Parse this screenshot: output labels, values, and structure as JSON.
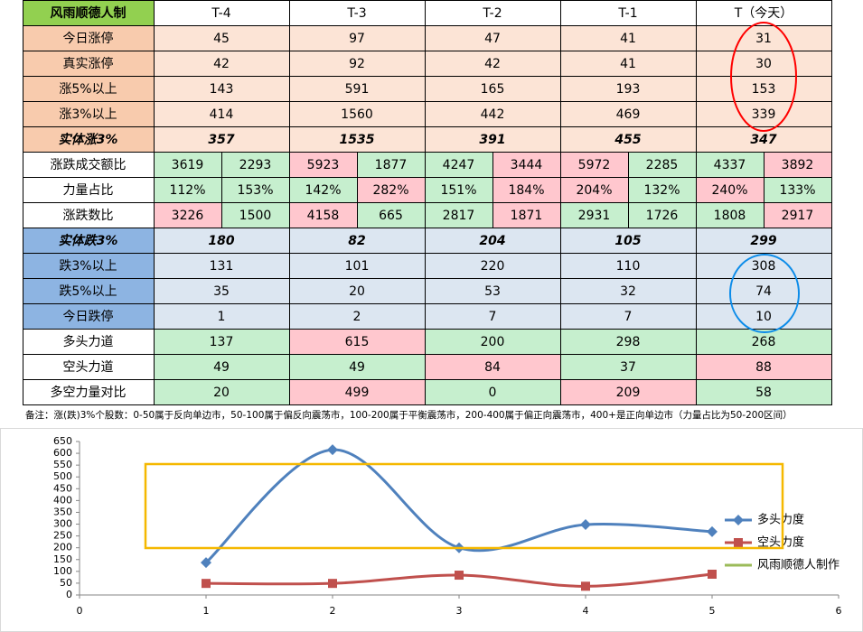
{
  "table": {
    "header": [
      "风雨顺德人制",
      "T-4",
      "T-3",
      "T-2",
      "T-1",
      "T（今天）"
    ],
    "rows": [
      {
        "label": "今日涨停",
        "cells": [
          45,
          97,
          47,
          41,
          31
        ]
      },
      {
        "label": "真实涨停",
        "cells": [
          42,
          92,
          42,
          41,
          30
        ]
      },
      {
        "label": "涨5%以上",
        "cells": [
          143,
          591,
          165,
          193,
          153
        ]
      },
      {
        "label": "涨3%以上",
        "cells": [
          414,
          1560,
          442,
          469,
          339
        ]
      },
      {
        "label": "实体涨3%",
        "cells": [
          357,
          1535,
          391,
          455,
          347
        ]
      },
      {
        "label": "涨跌成交额比",
        "cells": [
          [
            3619,
            2293
          ],
          [
            5923,
            1877
          ],
          [
            4247,
            3444
          ],
          [
            5972,
            2285
          ],
          [
            4337,
            3892
          ]
        ]
      },
      {
        "label": "力量占比",
        "cells": [
          [
            "112%",
            "153%"
          ],
          [
            "142%",
            "282%"
          ],
          [
            "151%",
            "184%"
          ],
          [
            "204%",
            "132%"
          ],
          [
            "240%",
            "133%"
          ]
        ]
      },
      {
        "label": "涨跌数比",
        "cells": [
          [
            3226,
            1500
          ],
          [
            4158,
            665
          ],
          [
            2817,
            1871
          ],
          [
            2931,
            1726
          ],
          [
            1808,
            2917
          ]
        ]
      },
      {
        "label": "实体跌3%",
        "cells": [
          180,
          82,
          204,
          105,
          299
        ]
      },
      {
        "label": "跌3%以上",
        "cells": [
          131,
          101,
          220,
          110,
          308
        ]
      },
      {
        "label": "跌5%以上",
        "cells": [
          35,
          20,
          53,
          32,
          74
        ]
      },
      {
        "label": "今日跌停",
        "cells": [
          1,
          2,
          7,
          7,
          10
        ]
      },
      {
        "label": "多头力道",
        "cells": [
          137,
          615,
          200,
          298,
          268
        ]
      },
      {
        "label": "空头力道",
        "cells": [
          49,
          49,
          84,
          37,
          88
        ]
      },
      {
        "label": "多空力量对比",
        "cells": [
          20,
          499,
          0,
          209,
          58
        ]
      }
    ],
    "note": "备注：涨(跌)3%个股数：0-50属于反向单边市，50-100属于偏反向震荡市，100-200属于平衡震荡市，200-400属于偏正向震荡市，400+是正向单边市（力量占比为50-200区间）"
  },
  "chart_data": {
    "type": "line",
    "x": [
      1,
      2,
      3,
      4,
      5
    ],
    "xlim": [
      0,
      6
    ],
    "xticks": [
      0,
      1,
      2,
      3,
      4,
      5,
      6
    ],
    "ylim": [
      0,
      650
    ],
    "yticks": [
      0,
      50,
      100,
      150,
      200,
      250,
      300,
      350,
      400,
      450,
      500,
      550,
      600,
      650
    ],
    "legend": "right",
    "series": [
      {
        "name": "多头力度",
        "color": "#4f81bd",
        "marker": "diamond",
        "values": [
          137,
          615,
          200,
          298,
          268
        ]
      },
      {
        "name": "空头力度",
        "color": "#c0504d",
        "marker": "square",
        "values": [
          49,
          49,
          84,
          37,
          88
        ]
      },
      {
        "name": "风雨顺德人制作",
        "color": "#9bbb59",
        "marker": "none",
        "values": [
          null,
          null,
          null,
          null,
          null
        ]
      }
    ]
  }
}
